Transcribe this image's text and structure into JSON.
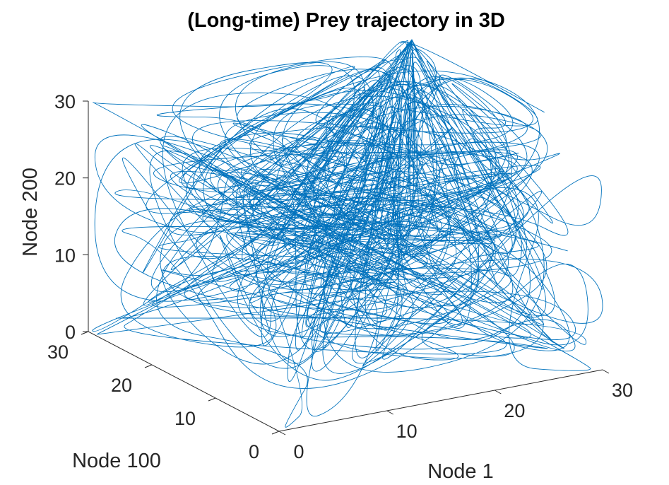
{
  "chart_data": {
    "type": "line3d",
    "title": "(Long-time) Prey trajectory in 3D",
    "xlabel": "Node 1",
    "ylabel": "Node 100",
    "zlabel": "Node 200",
    "xlim": [
      0,
      30
    ],
    "ylim": [
      0,
      30
    ],
    "zlim": [
      0,
      30
    ],
    "xticks": [
      0,
      10,
      20,
      30
    ],
    "yticks": [
      0,
      10,
      20,
      30
    ],
    "zticks": [
      0,
      10,
      20,
      30
    ],
    "grid": false,
    "legend": "none",
    "series": [
      {
        "color": "#0072BD"
      }
    ]
  }
}
